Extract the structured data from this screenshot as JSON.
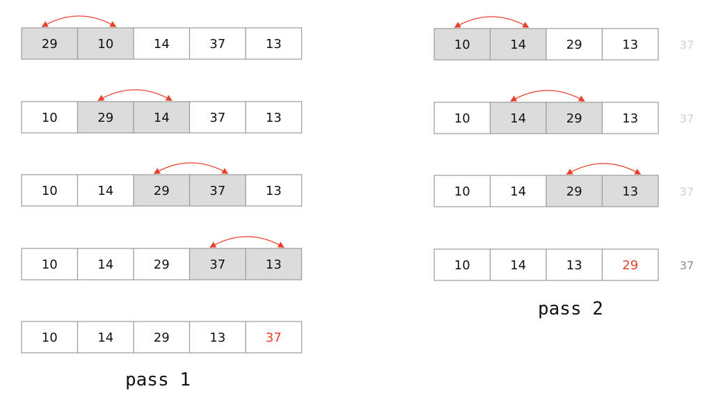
{
  "colors": {
    "swap_fill": "#dcdcdc",
    "normal_fill": "#ffffff",
    "text": "#111111",
    "highlight": "#e8402a",
    "sorted_faint": "#cfcfcf",
    "sorted": "#8a8a8a",
    "arrow": "#e8402a"
  },
  "passes": [
    {
      "label": "pass 1",
      "rows": [
        {
          "cells": [
            "29",
            "10",
            "14",
            "37",
            "13"
          ],
          "swap": [
            0,
            1
          ]
        },
        {
          "cells": [
            "10",
            "29",
            "14",
            "37",
            "13"
          ],
          "swap": [
            1,
            2
          ]
        },
        {
          "cells": [
            "10",
            "14",
            "29",
            "37",
            "13"
          ],
          "swap": [
            2,
            3
          ]
        },
        {
          "cells": [
            "10",
            "14",
            "29",
            "37",
            "13"
          ],
          "swap": [
            3,
            4
          ]
        },
        {
          "cells": [
            "10",
            "14",
            "29",
            "13",
            "37"
          ],
          "highlight": 4
        }
      ]
    },
    {
      "label": "pass 2",
      "rows": [
        {
          "cells": [
            "10",
            "14",
            "29",
            "13"
          ],
          "extra": "37",
          "swap": [
            0,
            1
          ]
        },
        {
          "cells": [
            "10",
            "14",
            "29",
            "13"
          ],
          "extra": "37",
          "swap": [
            1,
            2
          ]
        },
        {
          "cells": [
            "10",
            "14",
            "29",
            "13"
          ],
          "extra": "37",
          "swap": [
            2,
            3
          ]
        },
        {
          "cells": [
            "10",
            "14",
            "13",
            "29"
          ],
          "extra": "37",
          "highlight": 3,
          "extra_strong": true
        }
      ]
    }
  ]
}
